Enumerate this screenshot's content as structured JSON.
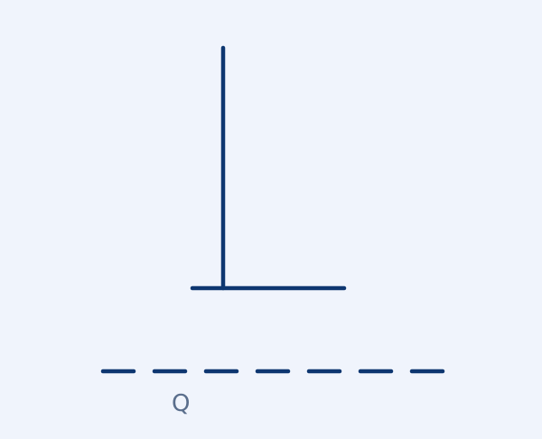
{
  "diagram": {
    "line_color": "#0d3670",
    "background_color": "#f0f4fc",
    "label_color": "#5a6e8c",
    "labels": {
      "q": "Q"
    }
  }
}
